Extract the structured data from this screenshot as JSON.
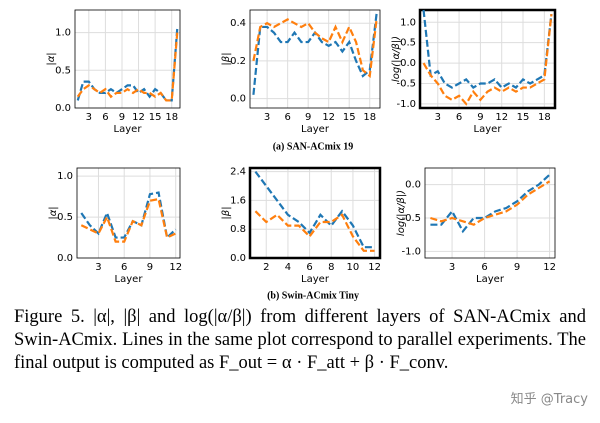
{
  "chart_data": [
    {
      "type": "line",
      "ylabel": "|α|",
      "xlabel": "Layer",
      "x": [
        1,
        2,
        3,
        4,
        5,
        6,
        7,
        8,
        9,
        10,
        11,
        12,
        13,
        14,
        15,
        16,
        17,
        18,
        19
      ],
      "xlim": [
        0.5,
        19.5
      ],
      "xticks": [
        3,
        6,
        9,
        12,
        15,
        18
      ],
      "ylim": [
        0,
        1.3
      ],
      "yticks": [
        {
          "value": 0,
          "label": "0.0"
        },
        0.5,
        {
          "value": 1,
          "label": "1.0"
        }
      ],
      "series": [
        {
          "color": "#1f77b4",
          "values": [
            0.1,
            0.35,
            0.35,
            0.25,
            0.2,
            0.2,
            0.25,
            0.2,
            0.25,
            0.3,
            0.3,
            0.2,
            0.25,
            0.15,
            0.25,
            0.2,
            0.1,
            0.1,
            1.05
          ]
        },
        {
          "color": "#ff7f0e",
          "values": [
            0.15,
            0.25,
            0.3,
            0.25,
            0.2,
            0.25,
            0.15,
            0.2,
            0.2,
            0.25,
            0.2,
            0.25,
            0.2,
            0.2,
            0.15,
            0.2,
            0.1,
            0.1,
            1.0
          ]
        }
      ]
    },
    {
      "type": "line",
      "ylabel": "|β|",
      "xlabel": "Layer",
      "x": [
        1,
        2,
        3,
        4,
        5,
        6,
        7,
        8,
        9,
        10,
        11,
        12,
        13,
        14,
        15,
        16,
        17,
        18,
        19
      ],
      "xlim": [
        0.5,
        19.5
      ],
      "xticks": [
        3,
        6,
        9,
        12,
        15,
        18
      ],
      "ylim": [
        -0.05,
        0.47
      ],
      "yticks": [
        {
          "value": 0,
          "label": "0.0"
        },
        0.2,
        0.4
      ],
      "series": [
        {
          "color": "#1f77b4",
          "values": [
            0.02,
            0.38,
            0.38,
            0.35,
            0.3,
            0.3,
            0.35,
            0.3,
            0.3,
            0.35,
            0.3,
            0.28,
            0.3,
            0.25,
            0.3,
            0.2,
            0.12,
            0.15,
            0.45
          ]
        },
        {
          "color": "#ff7f0e",
          "values": [
            0.2,
            0.38,
            0.4,
            0.38,
            0.4,
            0.42,
            0.4,
            0.38,
            0.4,
            0.35,
            0.32,
            0.3,
            0.38,
            0.3,
            0.38,
            0.3,
            0.15,
            0.12,
            0.42
          ]
        }
      ]
    },
    {
      "type": "line",
      "ylabel": "log(|α/β|)",
      "xlabel": "Layer",
      "bold_frame": true,
      "x": [
        1,
        2,
        3,
        4,
        5,
        6,
        7,
        8,
        9,
        10,
        11,
        12,
        13,
        14,
        15,
        16,
        17,
        18,
        19
      ],
      "xlim": [
        0.5,
        19.5
      ],
      "xticks": [
        3,
        6,
        9,
        12,
        15,
        18
      ],
      "ylim": [
        -1.1,
        1.3
      ],
      "yticks": [
        {
          "value": -1,
          "label": "-1.0"
        },
        -0.5,
        {
          "value": 0,
          "label": "0.0"
        },
        0.5,
        {
          "value": 1,
          "label": "1.0"
        }
      ],
      "series": [
        {
          "color": "#1f77b4",
          "values": [
            1.3,
            -0.3,
            -0.2,
            -0.5,
            -0.6,
            -0.5,
            -0.4,
            -0.6,
            -0.5,
            -0.5,
            -0.4,
            -0.6,
            -0.5,
            -0.6,
            -0.4,
            -0.5,
            -0.4,
            -0.3,
            1.2
          ]
        },
        {
          "color": "#ff7f0e",
          "values": [
            0,
            -0.3,
            -0.5,
            -0.8,
            -0.9,
            -0.8,
            -1.0,
            -0.7,
            -0.9,
            -0.7,
            -0.6,
            -0.7,
            -0.6,
            -0.7,
            -0.6,
            -0.6,
            -0.5,
            -0.4,
            1.2
          ]
        }
      ]
    },
    {
      "type": "line",
      "ylabel": "|α|",
      "xlabel": "Layer",
      "x": [
        1,
        2,
        3,
        4,
        5,
        6,
        7,
        8,
        9,
        10,
        11,
        12
      ],
      "xlim": [
        0.5,
        12.5
      ],
      "xticks": [
        3,
        6,
        9,
        12
      ],
      "ylim": [
        0,
        1.1
      ],
      "yticks": [
        {
          "value": 0,
          "label": "0.0"
        },
        0.5,
        {
          "value": 1,
          "label": "1.0"
        }
      ],
      "series": [
        {
          "color": "#1f77b4",
          "values": [
            0.55,
            0.4,
            0.3,
            0.55,
            0.25,
            0.25,
            0.45,
            0.4,
            0.78,
            0.8,
            0.25,
            0.35
          ]
        },
        {
          "color": "#ff7f0e",
          "values": [
            0.4,
            0.35,
            0.3,
            0.5,
            0.2,
            0.2,
            0.45,
            0.4,
            0.7,
            0.72,
            0.25,
            0.3
          ]
        }
      ]
    },
    {
      "type": "line",
      "ylabel": "|β|",
      "xlabel": "Layer",
      "bold_frame": true,
      "x": [
        1,
        2,
        3,
        4,
        5,
        6,
        7,
        8,
        9,
        10,
        11,
        12
      ],
      "xlim": [
        0.5,
        12.5
      ],
      "xticks": [
        2,
        4,
        6,
        8,
        10,
        12
      ],
      "ylim": [
        0,
        2.5
      ],
      "yticks": [
        {
          "value": 0,
          "label": "0.0"
        },
        0.8,
        1.6,
        2.4
      ],
      "series": [
        {
          "color": "#1f77b4",
          "values": [
            2.4,
            2.0,
            1.6,
            1.2,
            1.0,
            0.7,
            1.2,
            0.9,
            1.3,
            0.9,
            0.3,
            0.3
          ]
        },
        {
          "color": "#ff7f0e",
          "values": [
            1.3,
            1.0,
            1.2,
            0.9,
            0.9,
            0.6,
            1.0,
            1.0,
            1.2,
            0.6,
            0.2,
            0.2
          ]
        }
      ]
    },
    {
      "type": "line",
      "ylabel": "log(|α/β|)",
      "xlabel": "Layer",
      "x": [
        1,
        2,
        3,
        4,
        5,
        6,
        7,
        8,
        9,
        10,
        11,
        12
      ],
      "xlim": [
        0.5,
        12.5
      ],
      "xticks": [
        3,
        6,
        9,
        12
      ],
      "ylim": [
        -1.1,
        0.25
      ],
      "yticks": [
        {
          "value": -1,
          "label": "-1.0"
        },
        -0.5,
        {
          "value": 0,
          "label": "0.0"
        }
      ],
      "series": [
        {
          "color": "#1f77b4",
          "values": [
            -0.6,
            -0.6,
            -0.4,
            -0.7,
            -0.5,
            -0.5,
            -0.4,
            -0.35,
            -0.25,
            -0.1,
            0.0,
            0.15
          ]
        },
        {
          "color": "#ff7f0e",
          "values": [
            -0.5,
            -0.55,
            -0.5,
            -0.55,
            -0.6,
            -0.5,
            -0.45,
            -0.4,
            -0.3,
            -0.15,
            -0.05,
            0.05
          ]
        }
      ]
    }
  ],
  "subcaptions": [
    "(a) SAN-ACmix 19",
    "(b) Swin-ACmix Tiny"
  ],
  "caption": "Figure 5. |α|, |β| and log(|α/β|) from different layers of SAN-ACmix and Swin-ACmix. Lines in the same plot correspond to parallel experiments. The final output is computed as F_out = α · F_att + β · F_conv.",
  "watermark": "知乎 @Tracy"
}
